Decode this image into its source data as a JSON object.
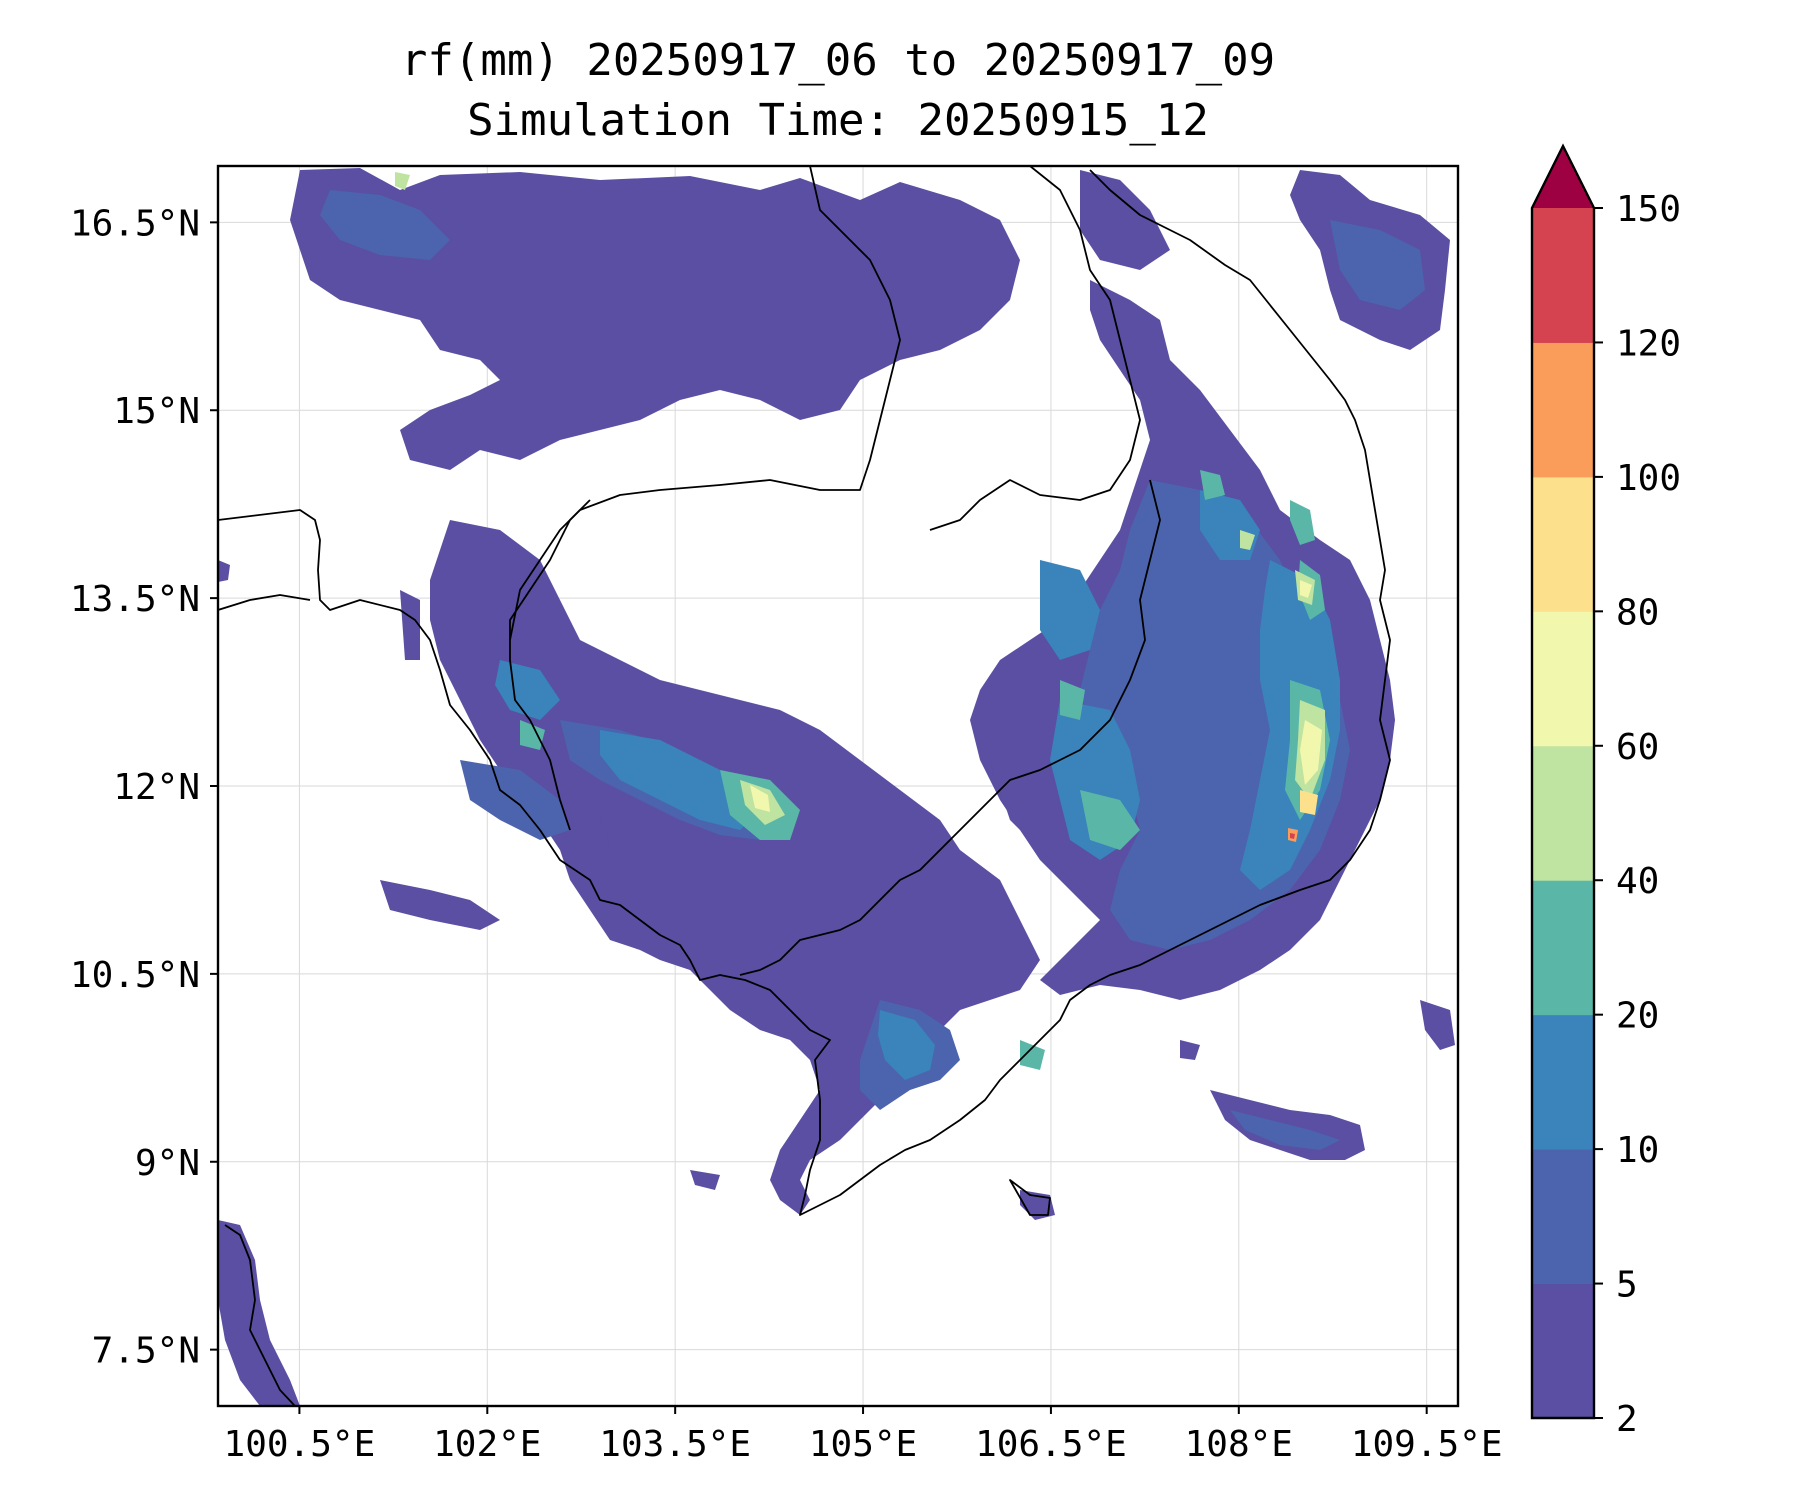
{
  "figure": {
    "title_line1": "rf(mm) 20250917_06 to 20250917_09",
    "title_line2": "Simulation Time: 20250915_12"
  },
  "map": {
    "extent": {
      "lon_min": 99.85,
      "lon_max": 109.75,
      "lat_min": 7.05,
      "lat_max": 16.95
    },
    "x_ticks": [
      {
        "lon": 100.5,
        "label": "100.5°E"
      },
      {
        "lon": 102.0,
        "label": "102°E"
      },
      {
        "lon": 103.5,
        "label": "103.5°E"
      },
      {
        "lon": 105.0,
        "label": "105°E"
      },
      {
        "lon": 106.5,
        "label": "106.5°E"
      },
      {
        "lon": 108.0,
        "label": "108°E"
      },
      {
        "lon": 109.5,
        "label": "109.5°E"
      }
    ],
    "y_ticks": [
      {
        "lat": 7.5,
        "label": "7.5°N"
      },
      {
        "lat": 9.0,
        "label": "9°N"
      },
      {
        "lat": 10.5,
        "label": "10.5°N"
      },
      {
        "lat": 12.0,
        "label": "12°N"
      },
      {
        "lat": 13.5,
        "label": "13.5°N"
      },
      {
        "lat": 15.0,
        "label": "15°N"
      },
      {
        "lat": 16.5,
        "label": "16.5°N"
      }
    ],
    "gridlines": true,
    "features": [
      "coastline",
      "country-borders"
    ]
  },
  "colorbar": {
    "orientation": "vertical",
    "placement": "right",
    "extend": "max",
    "levels": [
      2,
      5,
      10,
      20,
      40,
      60,
      80,
      100,
      120,
      150
    ],
    "tick_labels": [
      "2",
      "5",
      "10",
      "20",
      "40",
      "60",
      "80",
      "100",
      "120",
      "150"
    ],
    "colors": [
      "#5a4fa2",
      "#4c64ad",
      "#3a83bb",
      "#5ab7a8",
      "#bfe3a0",
      "#f2f7ae",
      "#fde08c",
      "#fa9c5a",
      "#d4434f"
    ],
    "extend_color": "#9e0142"
  }
}
